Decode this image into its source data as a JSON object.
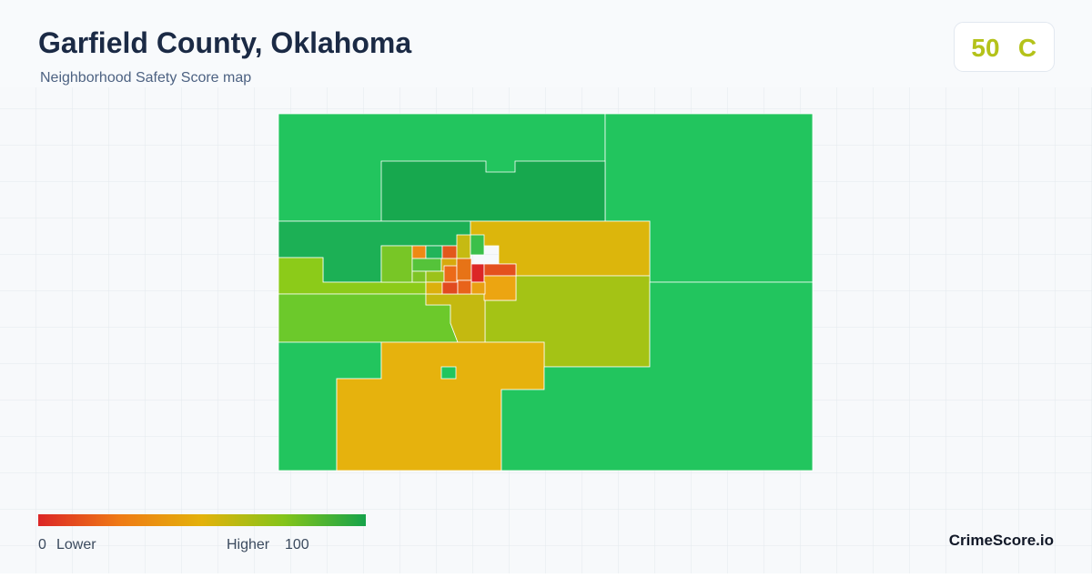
{
  "header": {
    "title": "Garfield County, Oklahoma",
    "subtitle": "Neighborhood Safety Score map"
  },
  "score": {
    "value": "50",
    "grade": "C"
  },
  "legend": {
    "min": 0,
    "min_label": "Lower",
    "max_label": "Higher",
    "max": 100
  },
  "brand": "CrimeScore.io"
}
